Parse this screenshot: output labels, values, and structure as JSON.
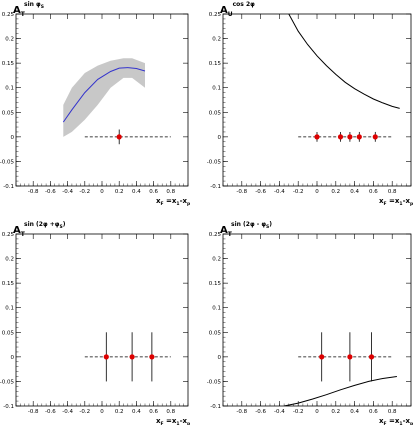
{
  "chart_data": [
    {
      "type": "scatter",
      "title": "",
      "ylabel": "A_T^{sin φS}",
      "ylabel_main": "A",
      "ylabel_sub": "T",
      "ylabel_sup": "sin φ",
      "ylabel_sup_sub": "S",
      "xlabel": "x_F = x_1 - x_p",
      "xlabel_text": "x",
      "xlabel_rest": " =x",
      "xlabel_tail": "-x",
      "xlim": [
        -1.0,
        1.0
      ],
      "ylim": [
        -0.1,
        0.25
      ],
      "x_ticks": [
        "-0.8",
        "-0.6",
        "-0.4",
        "-0.2",
        "0",
        "0.2",
        "0.4",
        "0.6",
        "0.8"
      ],
      "y_ticks": [
        "-0.1",
        "-0.05",
        "0",
        "0.05",
        "0.1",
        "0.15",
        "0.2",
        "0.25"
      ],
      "zero_line": {
        "x_from": -0.2,
        "x_to": 0.8
      },
      "points": [
        {
          "x": 0.2,
          "y": 0.0,
          "err": 0.015,
          "color": "#dd0000"
        }
      ],
      "band": {
        "color": "#c8c8c8",
        "x": [
          -0.45,
          -0.35,
          -0.2,
          -0.05,
          0.1,
          0.25,
          0.35,
          0.5
        ],
        "lower": [
          0.0,
          0.01,
          0.035,
          0.065,
          0.1,
          0.12,
          0.12,
          0.1
        ],
        "upper": [
          0.065,
          0.1,
          0.13,
          0.145,
          0.155,
          0.16,
          0.16,
          0.15
        ]
      },
      "curve": {
        "color": "#3333cc",
        "x": [
          -0.45,
          -0.35,
          -0.2,
          -0.05,
          0.1,
          0.2,
          0.3,
          0.4,
          0.5
        ],
        "y": [
          0.03,
          0.055,
          0.09,
          0.117,
          0.133,
          0.14,
          0.141,
          0.139,
          0.134
        ]
      }
    },
    {
      "type": "scatter",
      "title": "",
      "ylabel": "A_U^{cos 2φ}",
      "ylabel_main": "A",
      "ylabel_sub": "U",
      "ylabel_sup": "cos 2φ",
      "ylabel_sup_sub": "",
      "xlabel": "x_F = x_1 - x_p",
      "xlabel_text": "x",
      "xlabel_rest": " =x",
      "xlabel_tail": "-x",
      "xlim": [
        -1.0,
        1.0
      ],
      "ylim": [
        -0.1,
        0.25
      ],
      "x_ticks": [
        "-0.8",
        "-0.6",
        "-0.4",
        "-0.2",
        "0",
        "0.2",
        "0.4",
        "0.6",
        "0.8"
      ],
      "y_ticks": [
        "-0.1",
        "-0.05",
        "0",
        "0.05",
        "0.1",
        "0.15",
        "0.2",
        "0.25"
      ],
      "zero_line": {
        "x_from": -0.2,
        "x_to": 0.8
      },
      "points": [
        {
          "x": 0.0,
          "y": 0.0,
          "err": 0.01,
          "color": "#dd0000"
        },
        {
          "x": 0.25,
          "y": 0.0,
          "err": 0.01,
          "color": "#dd0000"
        },
        {
          "x": 0.35,
          "y": 0.0,
          "err": 0.01,
          "color": "#dd0000"
        },
        {
          "x": 0.45,
          "y": 0.0,
          "err": 0.01,
          "color": "#dd0000"
        },
        {
          "x": 0.62,
          "y": 0.0,
          "err": 0.01,
          "color": "#dd0000"
        }
      ],
      "curve": {
        "color": "#000000",
        "x": [
          -0.3,
          -0.2,
          -0.1,
          0.0,
          0.1,
          0.2,
          0.3,
          0.4,
          0.5,
          0.6,
          0.7,
          0.8,
          0.88
        ],
        "y": [
          0.25,
          0.215,
          0.188,
          0.165,
          0.145,
          0.127,
          0.111,
          0.098,
          0.087,
          0.077,
          0.069,
          0.062,
          0.058
        ]
      }
    },
    {
      "type": "scatter",
      "title": "",
      "ylabel": "A_T^{sin(2φ+φS)}",
      "ylabel_main": "A",
      "ylabel_sub": "T",
      "ylabel_sup": "sin (2φ +φ",
      "ylabel_sup_sub": "S",
      "ylabel_sup_close": ")",
      "xlabel": "x_F = x_1 - x_p",
      "xlabel_text": "x",
      "xlabel_rest": " =x",
      "xlabel_tail": "-x",
      "xlim": [
        -1.0,
        1.0
      ],
      "ylim": [
        -0.1,
        0.25
      ],
      "x_ticks": [
        "-0.8",
        "-0.6",
        "-0.4",
        "-0.2",
        "0",
        "0.2",
        "0.4",
        "0.6",
        "0.8"
      ],
      "y_ticks": [
        "-0.1",
        "-0.05",
        "0",
        "0.05",
        "0.1",
        "0.15",
        "0.2",
        "0.25"
      ],
      "zero_line": {
        "x_from": -0.2,
        "x_to": 0.8
      },
      "points": [
        {
          "x": 0.05,
          "y": 0.0,
          "err": 0.05,
          "color": "#dd0000"
        },
        {
          "x": 0.35,
          "y": 0.0,
          "err": 0.05,
          "color": "#dd0000"
        },
        {
          "x": 0.58,
          "y": 0.0,
          "err": 0.05,
          "color": "#dd0000"
        }
      ]
    },
    {
      "type": "scatter",
      "title": "",
      "ylabel": "A_T^{sin(2φ-φS)}",
      "ylabel_main": "A",
      "ylabel_sub": "T",
      "ylabel_sup": "sin (2φ - φ",
      "ylabel_sup_sub": "S",
      "ylabel_sup_close": ")",
      "xlabel": "x_F = x_1 - x_p",
      "xlabel_text": "x",
      "xlabel_rest": " =x",
      "xlabel_tail": "-x",
      "xlim": [
        -1.0,
        1.0
      ],
      "ylim": [
        -0.1,
        0.25
      ],
      "x_ticks": [
        "-0.8",
        "-0.6",
        "-0.4",
        "-0.2",
        "0",
        "0.2",
        "0.4",
        "0.6",
        "0.8"
      ],
      "y_ticks": [
        "-0.1",
        "-0.05",
        "0",
        "0.05",
        "0.1",
        "0.15",
        "0.2",
        "0.25"
      ],
      "zero_line": {
        "x_from": -0.2,
        "x_to": 0.8
      },
      "points": [
        {
          "x": 0.05,
          "y": 0.0,
          "err": 0.05,
          "color": "#dd0000"
        },
        {
          "x": 0.35,
          "y": 0.0,
          "err": 0.05,
          "color": "#dd0000"
        },
        {
          "x": 0.58,
          "y": 0.0,
          "err": 0.05,
          "color": "#dd0000"
        }
      ],
      "curve": {
        "color": "#000000",
        "x": [
          -0.35,
          -0.2,
          -0.05,
          0.1,
          0.25,
          0.4,
          0.55,
          0.7,
          0.85
        ],
        "y": [
          -0.1,
          -0.094,
          -0.086,
          -0.077,
          -0.067,
          -0.058,
          -0.05,
          -0.044,
          -0.04
        ]
      }
    }
  ]
}
